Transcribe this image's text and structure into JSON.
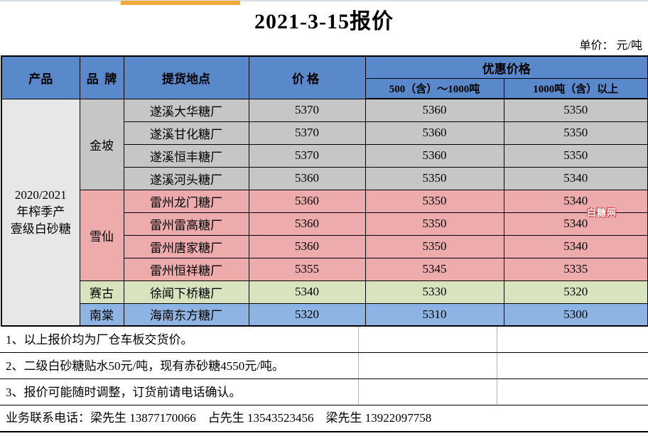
{
  "title": "2021-3-15报价",
  "unit_label": "单价： 元/吨",
  "watermark": "白糖网",
  "colors": {
    "header_blue": "#5A89CB",
    "product_bg": "#E7E7E7",
    "orange_accent": "#EFA93D",
    "note_gridline": "#ABB4BC",
    "watermark_red": "#CC3333",
    "group_gray": "#C6C6C6",
    "group_pink": "#EDACAB",
    "group_green": "#D7E4BD",
    "group_blue": "#8DB4E2"
  },
  "table": {
    "headers": {
      "product": "产品",
      "brand": "品  牌",
      "location": "提货地点",
      "price": "价格",
      "discount": "优惠价格",
      "tier1": "500（含）～1000吨",
      "tier2": "1000吨（含）以上"
    },
    "product_name": "2020/2021\n年榨季产\n壹级白砂糖",
    "groups": [
      {
        "brand": "金坡",
        "color": "#C6C6C6",
        "rows": [
          {
            "location": "遂溪大华糖厂",
            "price": "5370",
            "tier1": "5360",
            "tier2": "5350"
          },
          {
            "location": "遂溪甘化糖厂",
            "price": "5370",
            "tier1": "5360",
            "tier2": "5350"
          },
          {
            "location": "遂溪恒丰糖厂",
            "price": "5370",
            "tier1": "5360",
            "tier2": "5350"
          },
          {
            "location": "遂溪河头糖厂",
            "price": "5360",
            "tier1": "5350",
            "tier2": "5340"
          }
        ]
      },
      {
        "brand": "雪仙",
        "color": "#EDACAB",
        "rows": [
          {
            "location": "雷州龙门糖厂",
            "price": "5360",
            "tier1": "5350",
            "tier2": "5340"
          },
          {
            "location": "雷州雷高糖厂",
            "price": "5360",
            "tier1": "5350",
            "tier2": "5340"
          },
          {
            "location": "雷州唐家糖厂",
            "price": "5360",
            "tier1": "5350",
            "tier2": "5340"
          },
          {
            "location": "雷州恒祥糖厂",
            "price": "5355",
            "tier1": "5345",
            "tier2": "5335"
          }
        ]
      },
      {
        "brand": "赛古",
        "color": "#D7E4BD",
        "rows": [
          {
            "location": "徐闻下桥糖厂",
            "price": "5340",
            "tier1": "5330",
            "tier2": "5320"
          }
        ]
      },
      {
        "brand": "南棠",
        "color": "#8DB4E2",
        "rows": [
          {
            "location": "海南东方糖厂",
            "price": "5320",
            "tier1": "5310",
            "tier2": "5300"
          }
        ]
      }
    ]
  },
  "notes": [
    "1、以上报价均为厂仓车板交货价。",
    "2、二级白砂糖贴水50元/吨，现有赤砂糖4550元/吨。",
    "3、报价可能随时调整，订货前请电话确认。"
  ],
  "contact": "业务联系电话：梁先生 13877170066    占先生 13543523456    梁先生 13922097758"
}
